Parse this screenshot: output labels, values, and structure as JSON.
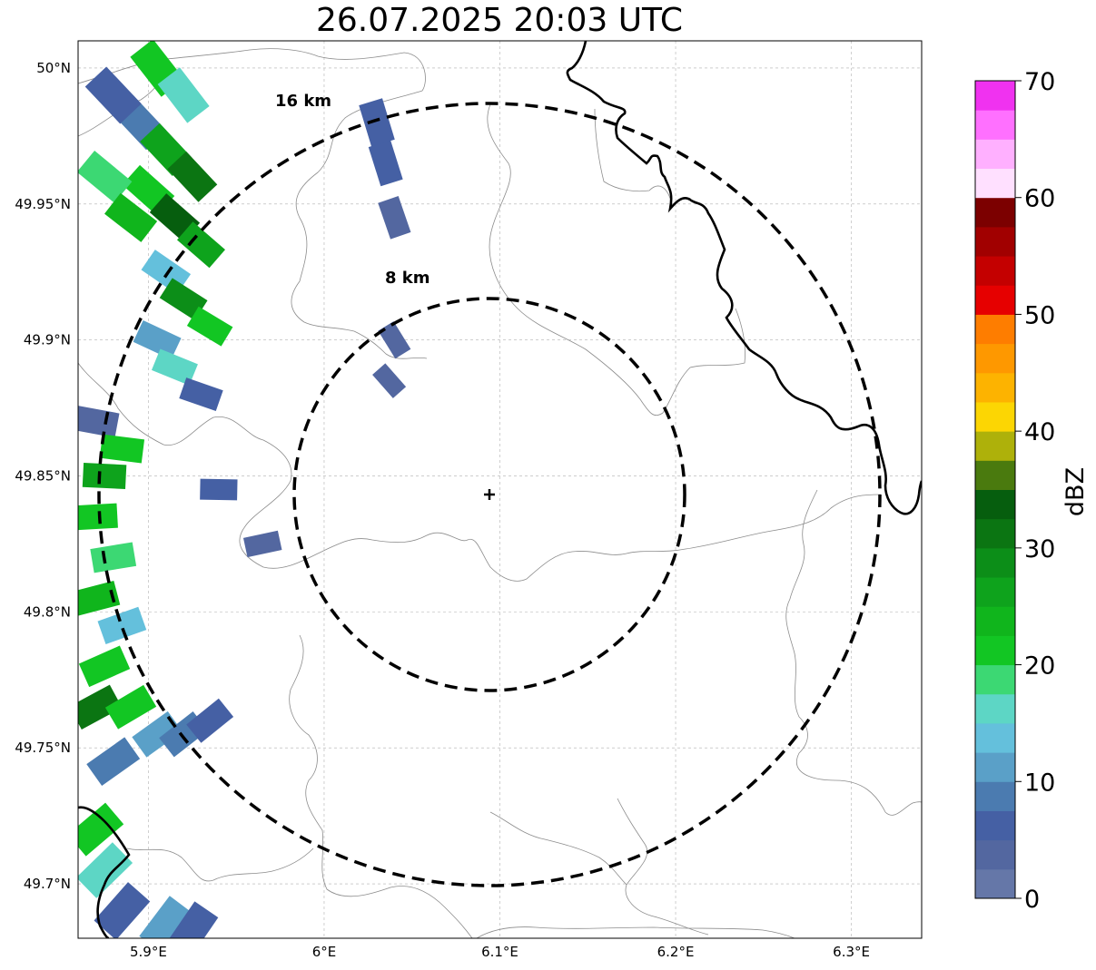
{
  "title": "26.07.2025 20:03 UTC",
  "map": {
    "lon_range": [
      5.86,
      6.34
    ],
    "lat_range": [
      49.68,
      50.01
    ],
    "grid": true,
    "x_ticks": [
      {
        "value": 5.9,
        "label": "5.9°E"
      },
      {
        "value": 6.0,
        "label": "6°E"
      },
      {
        "value": 6.1,
        "label": "6.1°E"
      },
      {
        "value": 6.2,
        "label": "6.2°E"
      },
      {
        "value": 6.3,
        "label": "6.3°E"
      }
    ],
    "y_ticks": [
      {
        "value": 50.0,
        "label": "50°N"
      },
      {
        "value": 49.95,
        "label": "49.95°N"
      },
      {
        "value": 49.9,
        "label": "49.9°N"
      },
      {
        "value": 49.85,
        "label": "49.85°N"
      },
      {
        "value": 49.8,
        "label": "49.8°N"
      },
      {
        "value": 49.75,
        "label": "49.75°N"
      },
      {
        "value": 49.7,
        "label": "49.7°N"
      }
    ],
    "radar_site": {
      "lon": 6.0944,
      "lat": 49.843
    },
    "range_rings": [
      {
        "radius_km": 8,
        "label": "8 km"
      },
      {
        "radius_km": 16,
        "label": "16 km"
      }
    ]
  },
  "colorbar": {
    "label": "dBZ",
    "min": 0,
    "max": 70,
    "step": 2.5,
    "ticks": [
      {
        "value": 0,
        "label": "0"
      },
      {
        "value": 10,
        "label": "10"
      },
      {
        "value": 20,
        "label": "20"
      },
      {
        "value": 30,
        "label": "30"
      },
      {
        "value": 40,
        "label": "40"
      },
      {
        "value": 50,
        "label": "50"
      },
      {
        "value": 60,
        "label": "60"
      },
      {
        "value": 70,
        "label": "70"
      }
    ],
    "colors": [
      "#6577a8",
      "#5367a0",
      "#4560a4",
      "#4b7bb0",
      "#5aa0c8",
      "#64c0dc",
      "#5dd6c5",
      "#3cd873",
      "#12c623",
      "#10b51c",
      "#0ea31c",
      "#0c8e18",
      "#0b7512",
      "#065e0e",
      "#4a7a0e",
      "#aeb10a",
      "#fcd603",
      "#fdb300",
      "#fe9800",
      "#fe7d00",
      "#e60000",
      "#c40000",
      "#a10000",
      "#7c0000",
      "#ffe0ff",
      "#ffb0ff",
      "#ff70ff",
      "#f032f0"
    ]
  },
  "reflectivity_cells": [
    {
      "lon": 5.905,
      "lat": 50.0,
      "dbz": 22
    },
    {
      "lon": 5.92,
      "lat": 49.99,
      "dbz": 15
    },
    {
      "lon": 5.895,
      "lat": 49.98,
      "dbz": 8
    },
    {
      "lon": 5.91,
      "lat": 49.97,
      "dbz": 25
    },
    {
      "lon": 5.925,
      "lat": 49.96,
      "dbz": 30
    },
    {
      "lon": 5.9,
      "lat": 49.955,
      "dbz": 20
    },
    {
      "lon": 5.915,
      "lat": 49.945,
      "dbz": 34
    },
    {
      "lon": 5.93,
      "lat": 49.935,
      "dbz": 26
    },
    {
      "lon": 5.91,
      "lat": 49.925,
      "dbz": 14
    },
    {
      "lon": 5.92,
      "lat": 49.915,
      "dbz": 28
    },
    {
      "lon": 5.935,
      "lat": 49.905,
      "dbz": 22
    },
    {
      "lon": 5.905,
      "lat": 49.9,
      "dbz": 10
    },
    {
      "lon": 5.915,
      "lat": 49.89,
      "dbz": 16
    },
    {
      "lon": 5.93,
      "lat": 49.88,
      "dbz": 6
    },
    {
      "lon": 5.875,
      "lat": 49.96,
      "dbz": 18
    },
    {
      "lon": 5.89,
      "lat": 49.945,
      "dbz": 24
    },
    {
      "lon": 5.88,
      "lat": 49.99,
      "dbz": 6
    },
    {
      "lon": 6.035,
      "lat": 49.965,
      "dbz": 5
    },
    {
      "lon": 6.04,
      "lat": 49.945,
      "dbz": 4
    },
    {
      "lon": 6.03,
      "lat": 49.98,
      "dbz": 6
    },
    {
      "lon": 6.04,
      "lat": 49.9,
      "dbz": 3
    },
    {
      "lon": 6.037,
      "lat": 49.885,
      "dbz": 4
    },
    {
      "lon": 5.94,
      "lat": 49.845,
      "dbz": 5
    },
    {
      "lon": 5.965,
      "lat": 49.825,
      "dbz": 3
    },
    {
      "lon": 5.87,
      "lat": 49.87,
      "dbz": 4
    },
    {
      "lon": 5.885,
      "lat": 49.86,
      "dbz": 20
    },
    {
      "lon": 5.875,
      "lat": 49.85,
      "dbz": 26
    },
    {
      "lon": 5.87,
      "lat": 49.835,
      "dbz": 22
    },
    {
      "lon": 5.88,
      "lat": 49.82,
      "dbz": 18
    },
    {
      "lon": 5.87,
      "lat": 49.805,
      "dbz": 24
    },
    {
      "lon": 5.885,
      "lat": 49.795,
      "dbz": 14
    },
    {
      "lon": 5.875,
      "lat": 49.78,
      "dbz": 22
    },
    {
      "lon": 5.87,
      "lat": 49.765,
      "dbz": 30
    },
    {
      "lon": 5.89,
      "lat": 49.765,
      "dbz": 20
    },
    {
      "lon": 5.905,
      "lat": 49.755,
      "dbz": 12
    },
    {
      "lon": 5.92,
      "lat": 49.755,
      "dbz": 8
    },
    {
      "lon": 5.935,
      "lat": 49.76,
      "dbz": 5
    },
    {
      "lon": 5.88,
      "lat": 49.745,
      "dbz": 8
    },
    {
      "lon": 5.87,
      "lat": 49.72,
      "dbz": 22
    },
    {
      "lon": 5.875,
      "lat": 49.705,
      "dbz": 16
    },
    {
      "lon": 5.885,
      "lat": 49.69,
      "dbz": 6
    },
    {
      "lon": 5.91,
      "lat": 49.685,
      "dbz": 12
    },
    {
      "lon": 5.925,
      "lat": 49.683,
      "dbz": 5
    }
  ]
}
